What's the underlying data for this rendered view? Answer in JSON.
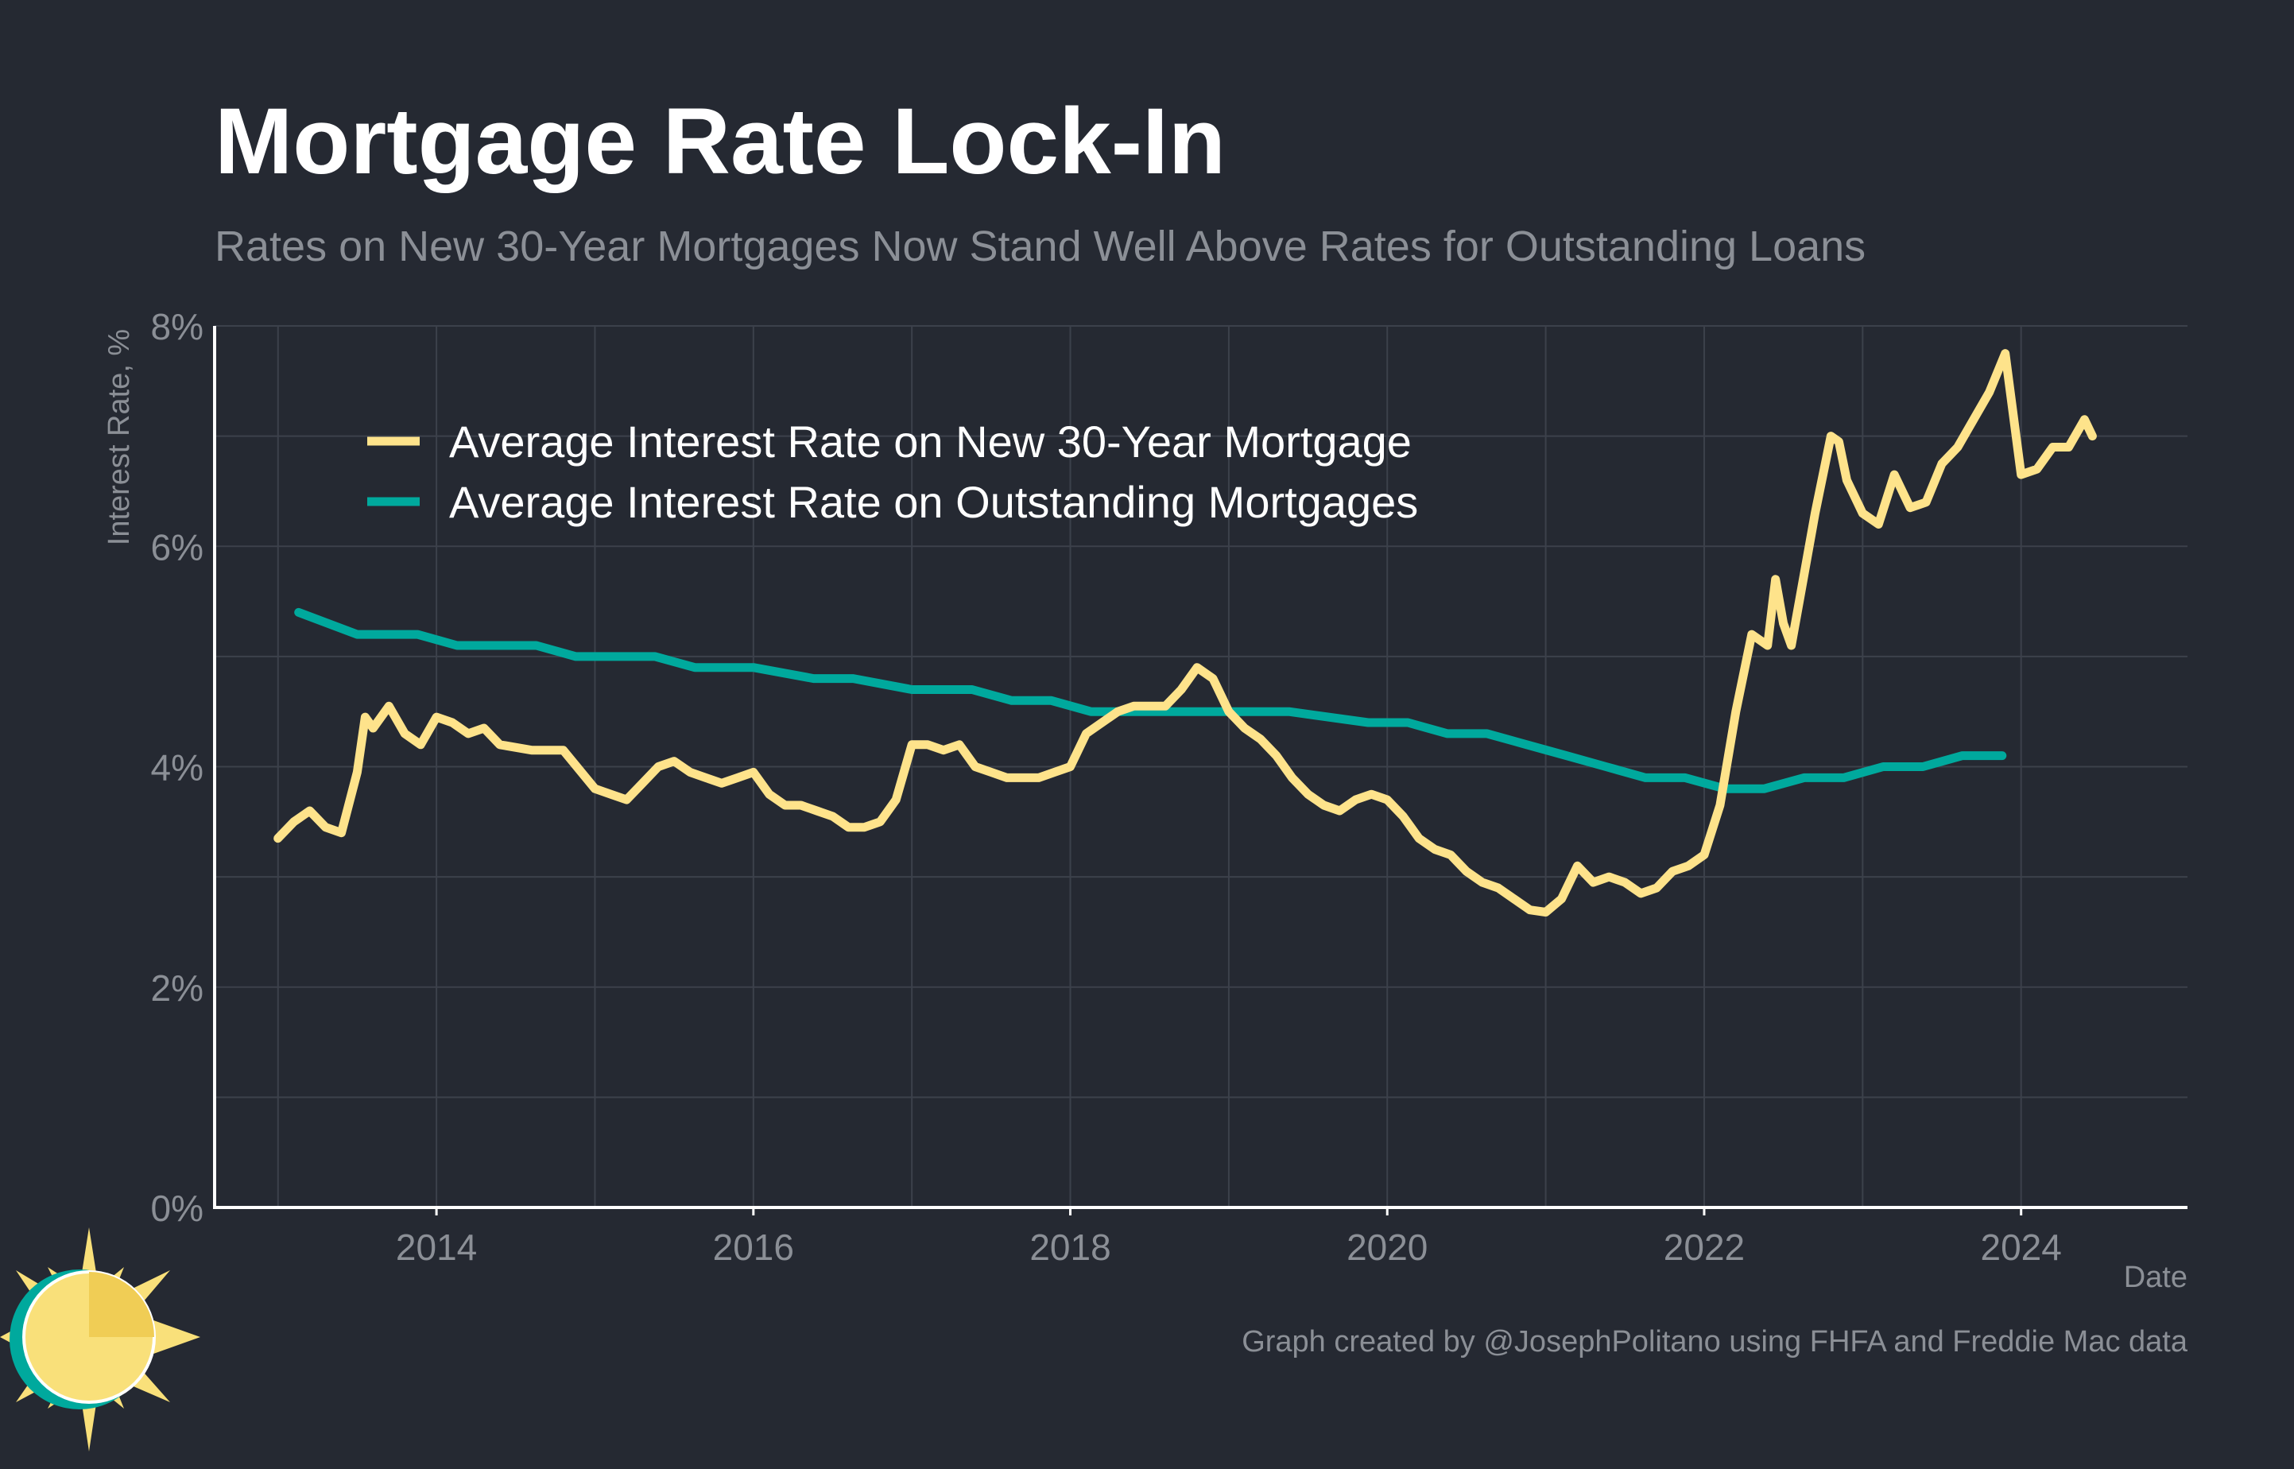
{
  "chart_data": {
    "type": "line",
    "title": "Mortgage Rate Lock-In",
    "subtitle": "Rates on New 30-Year Mortgages Now Stand Well Above Rates for Outstanding Loans",
    "xlabel": "Date",
    "ylabel": "Interest Rate, %",
    "xlim": [
      2012.6,
      2025.05
    ],
    "ylim": [
      0,
      8
    ],
    "x_ticks": [
      {
        "value": 2014,
        "label": "2014"
      },
      {
        "value": 2016,
        "label": "2016"
      },
      {
        "value": 2018,
        "label": "2018"
      },
      {
        "value": 2020,
        "label": "2020"
      },
      {
        "value": 2022,
        "label": "2022"
      },
      {
        "value": 2024,
        "label": "2024"
      }
    ],
    "y_ticks": [
      {
        "value": 0,
        "label": "0%"
      },
      {
        "value": 2,
        "label": "2%"
      },
      {
        "value": 4,
        "label": "4%"
      },
      {
        "value": 6,
        "label": "6%"
      },
      {
        "value": 8,
        "label": "8%"
      }
    ],
    "grid": true,
    "legend_position": "top-left",
    "series": [
      {
        "name": "Average Interest Rate on New 30-Year Mortgage",
        "color": "#FEE38B",
        "x": [
          2013.0,
          2013.1,
          2013.2,
          2013.3,
          2013.4,
          2013.5,
          2013.55,
          2013.6,
          2013.7,
          2013.8,
          2013.9,
          2014.0,
          2014.1,
          2014.2,
          2014.3,
          2014.4,
          2014.6,
          2014.8,
          2015.0,
          2015.1,
          2015.2,
          2015.3,
          2015.4,
          2015.5,
          2015.6,
          2015.7,
          2015.8,
          2015.9,
          2016.0,
          2016.1,
          2016.2,
          2016.3,
          2016.4,
          2016.5,
          2016.6,
          2016.7,
          2016.8,
          2016.9,
          2017.0,
          2017.1,
          2017.2,
          2017.3,
          2017.4,
          2017.5,
          2017.6,
          2017.7,
          2017.8,
          2017.9,
          2018.0,
          2018.1,
          2018.2,
          2018.3,
          2018.4,
          2018.5,
          2018.6,
          2018.7,
          2018.8,
          2018.9,
          2019.0,
          2019.1,
          2019.2,
          2019.3,
          2019.4,
          2019.5,
          2019.6,
          2019.7,
          2019.8,
          2019.9,
          2020.0,
          2020.1,
          2020.2,
          2020.3,
          2020.4,
          2020.5,
          2020.6,
          2020.7,
          2020.8,
          2020.9,
          2021.0,
          2021.1,
          2021.2,
          2021.3,
          2021.4,
          2021.5,
          2021.6,
          2021.7,
          2021.8,
          2021.9,
          2022.0,
          2022.1,
          2022.2,
          2022.3,
          2022.4,
          2022.45,
          2022.5,
          2022.55,
          2022.6,
          2022.7,
          2022.8,
          2022.85,
          2022.9,
          2023.0,
          2023.1,
          2023.2,
          2023.3,
          2023.4,
          2023.5,
          2023.6,
          2023.7,
          2023.8,
          2023.9,
          2024.0,
          2024.1,
          2024.2,
          2024.3,
          2024.4,
          2024.45
        ],
        "values": [
          3.35,
          3.5,
          3.6,
          3.45,
          3.4,
          3.95,
          4.45,
          4.35,
          4.55,
          4.3,
          4.2,
          4.45,
          4.4,
          4.3,
          4.35,
          4.2,
          4.15,
          4.15,
          3.8,
          3.75,
          3.7,
          3.85,
          4.0,
          4.05,
          3.95,
          3.9,
          3.85,
          3.9,
          3.95,
          3.75,
          3.65,
          3.65,
          3.6,
          3.55,
          3.45,
          3.45,
          3.5,
          3.7,
          4.2,
          4.2,
          4.15,
          4.2,
          4.0,
          3.95,
          3.9,
          3.9,
          3.9,
          3.95,
          4.0,
          4.3,
          4.4,
          4.5,
          4.55,
          4.55,
          4.55,
          4.7,
          4.9,
          4.8,
          4.5,
          4.35,
          4.25,
          4.1,
          3.9,
          3.75,
          3.65,
          3.6,
          3.7,
          3.75,
          3.7,
          3.55,
          3.35,
          3.25,
          3.2,
          3.05,
          2.95,
          2.9,
          2.8,
          2.7,
          2.68,
          2.8,
          3.1,
          2.95,
          3.0,
          2.95,
          2.85,
          2.9,
          3.05,
          3.1,
          3.2,
          3.65,
          4.5,
          5.2,
          5.1,
          5.7,
          5.3,
          5.1,
          5.5,
          6.3,
          7.0,
          6.95,
          6.6,
          6.3,
          6.2,
          6.65,
          6.35,
          6.4,
          6.75,
          6.9,
          7.15,
          7.4,
          7.75,
          6.65,
          6.7,
          6.9,
          6.9,
          7.15,
          7.0
        ]
      },
      {
        "name": "Average Interest Rate on Outstanding Mortgages",
        "color": "#00A99D",
        "x": [
          2013.13,
          2013.5,
          2013.88,
          2014.13,
          2014.63,
          2014.88,
          2015.38,
          2015.63,
          2016.0,
          2016.38,
          2016.63,
          2017.0,
          2017.38,
          2017.63,
          2017.88,
          2018.13,
          2018.38,
          2018.63,
          2018.88,
          2019.38,
          2019.88,
          2020.13,
          2020.38,
          2020.63,
          2020.88,
          2021.13,
          2021.38,
          2021.63,
          2021.88,
          2022.13,
          2022.38,
          2022.63,
          2022.88,
          2023.13,
          2023.38,
          2023.63,
          2023.88
        ],
        "values": [
          5.4,
          5.2,
          5.2,
          5.1,
          5.1,
          5.0,
          5.0,
          4.9,
          4.9,
          4.8,
          4.8,
          4.7,
          4.7,
          4.6,
          4.6,
          4.5,
          4.5,
          4.5,
          4.5,
          4.5,
          4.4,
          4.4,
          4.3,
          4.3,
          4.2,
          4.1,
          4.0,
          3.9,
          3.9,
          3.8,
          3.8,
          3.9,
          3.9,
          4.0,
          4.0,
          4.1,
          4.1
        ]
      }
    ]
  },
  "credit": "Graph created by @JosephPolitano using FHFA and Freddie Mac data",
  "logo": {
    "icon": "sun-icon",
    "colors": [
      "#F9E07A",
      "#00A99D"
    ]
  }
}
